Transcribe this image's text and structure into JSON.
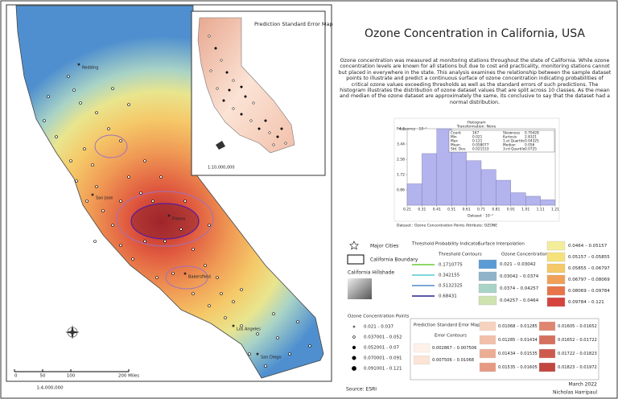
{
  "title": "Ozone Concentration in California, USA",
  "description": "Ozone concentration was measured at monitoring stations throughout the state of California. While ozone concentration levels are known for all stations but due to cost and practicality, monitoring stations cannot but placed in everywhere in the state. This analysis examines the relationship between the sample dataset points to illustrate and predict a continuous surface of ozone concentration indicating probabilities of critical ozone values exceeding thresholds as well as the standard errors of such predictions. The histogram illustrates the distribution of ozone dataset values that are split across 10 classes. As the mean and median of the ozone dataset are approximately the same, its conclusive to say that the dataset had a normal distribution.",
  "cities": [
    "Redding",
    "San Jose",
    "Fresno",
    "Bakersfield",
    "Los Angeles",
    "San Diego"
  ],
  "scale_bar": {
    "labels": [
      "0",
      "50",
      "100",
      "200 Miles"
    ],
    "ratio": "1:4,000,000"
  },
  "inset": {
    "title": "Prediction Standard Error Map",
    "ratio": "1:10,000,000"
  },
  "histogram": {
    "title": "Histogram",
    "subtitle": "Transformation: None",
    "y_label": "Frequency · 10⁻¹",
    "x_label": "Dataset · 10⁻¹",
    "caption": "Dataset : Ozone Concentration Points Attribute: OZONE",
    "bins": [
      0.21,
      0.31,
      0.41,
      0.51,
      0.61,
      0.71,
      0.81,
      0.91,
      1.01,
      1.11,
      1.21
    ],
    "counts": [
      1.2,
      2.9,
      4.3,
      3.3,
      2.5,
      2.0,
      1.4,
      0.7,
      0.5,
      0.3
    ],
    "color": "#b3b3ee",
    "xlim": [
      0.21,
      1.21
    ],
    "xticks": [
      0.21,
      0.31,
      0.41,
      0.51,
      0.61,
      0.71,
      0.81,
      0.91,
      1.01,
      1.11,
      1.21
    ],
    "ylim": [
      0,
      4.3
    ],
    "yticks": [
      0.86,
      1.72,
      2.58,
      3.44,
      4.3
    ],
    "stats": [
      {
        "label": "Count",
        "value": "167"
      },
      {
        "label": "Min",
        "value": "0.021"
      },
      {
        "label": "Max",
        "value": "0.121"
      },
      {
        "label": "Mean",
        "value": "0.058077"
      },
      {
        "label": "Std. Dev.",
        "value": "0.021153"
      },
      {
        "label": "Skewness",
        "value": "0.70428"
      },
      {
        "label": "Kurtosis",
        "value": "2.8321"
      },
      {
        "label": "1-st Quartile",
        "value": "0.04325"
      },
      {
        "label": "Median",
        "value": "0.056"
      },
      {
        "label": "3-rd Quartile",
        "value": "0.0725"
      }
    ]
  },
  "legend": {
    "major_cities": "Major Cities",
    "boundary": "California Boundary",
    "hillshade": "California Hillshade",
    "threshold": {
      "title": "Threshold Probability Indicator",
      "subtitle": "Threshold Contours",
      "items": [
        {
          "label": "0.1710775",
          "color": "#66cc33"
        },
        {
          "label": "0.342155",
          "color": "#55cccc"
        },
        {
          "label": "0.5132325",
          "color": "#5588cc"
        },
        {
          "label": "0.68431",
          "color": "#222288"
        }
      ]
    },
    "surface": {
      "title": "Surface Interpolation",
      "subtitle": "Ozone Concentration",
      "items": [
        {
          "label": "0.021 – 0.03042",
          "color": "#5b9bd5"
        },
        {
          "label": "0.03042 – 0.0374",
          "color": "#8fb3c9"
        },
        {
          "label": "0.0374 – 0.04257",
          "color": "#a9d3c6"
        },
        {
          "label": "0.04257 – 0.0464",
          "color": "#cfe3b0"
        },
        {
          "label": "0.0464 – 0.05157",
          "color": "#f4ee9a"
        },
        {
          "label": "0.05157 – 0.05855",
          "color": "#f6e27a"
        },
        {
          "label": "0.05855 – 0.06797",
          "color": "#f5c868"
        },
        {
          "label": "0.06797 – 0.08069",
          "color": "#f0a057"
        },
        {
          "label": "0.08069 – 0.09784",
          "color": "#e8744a"
        },
        {
          "label": "0.09784 – 0.121",
          "color": "#d6433d"
        }
      ]
    },
    "points": {
      "title": "Ozone Concentration Points",
      "items": [
        "0.021 - 0.037",
        "0.037001 - 0.052",
        "0.052001 - 0.07",
        "0.070001 - 0.091",
        "0.091001 - 0.121"
      ]
    },
    "error": {
      "title": "Prediction Standard Error Map",
      "subtitle": "Error Contours",
      "items": [
        {
          "label": "0.002867 – 0.007506",
          "color": "#fdf1ea"
        },
        {
          "label": "0.007506 – 0.01068",
          "color": "#fbe3d5"
        },
        {
          "label": "0.01068 – 0.01285",
          "color": "#f7d2bf"
        },
        {
          "label": "0.01285 – 0.01434",
          "color": "#f2c0aa"
        },
        {
          "label": "0.01434 – 0.01535",
          "color": "#ecad95"
        },
        {
          "label": "0.01535 – 0.01605",
          "color": "#e69a82"
        },
        {
          "label": "0.01605 – 0.01652",
          "color": "#df8570"
        },
        {
          "label": "0.01652 – 0.01722",
          "color": "#d6705e"
        },
        {
          "label": "0.01722 – 0.01823",
          "color": "#cc5b4e"
        },
        {
          "label": "0.01823 – 0.01972",
          "color": "#c1463f"
        }
      ]
    }
  },
  "source": "Source: ESRI",
  "date": "March 2022",
  "author": "Nicholas Harripaul"
}
